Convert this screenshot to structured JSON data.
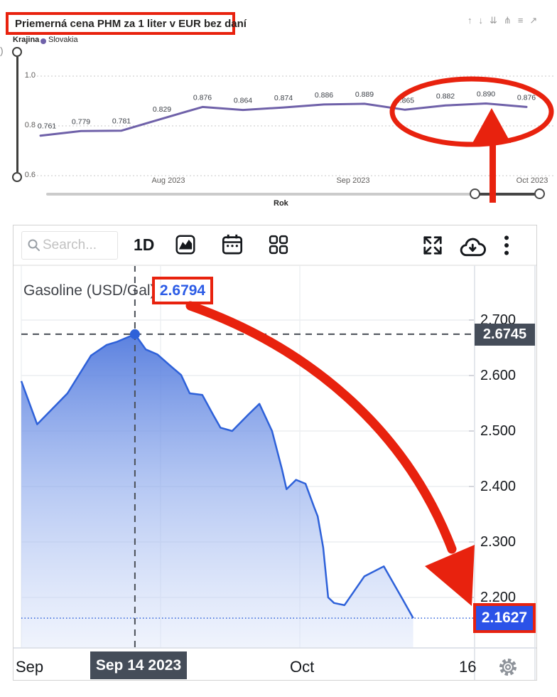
{
  "top_chart": {
    "title": "Priemerná cena PHM za 1 liter v EUR bez daní",
    "legend": {
      "field_label": "Krajina",
      "series_label": "Slovakia",
      "series_color": "#6f61a9"
    },
    "header_icons": [
      {
        "name": "drill-up-icon",
        "glyph": "↑"
      },
      {
        "name": "drill-down-icon",
        "glyph": "↓"
      },
      {
        "name": "next-level-icon",
        "glyph": "⇊"
      },
      {
        "name": "expand-hierarchy-icon",
        "glyph": "⋔"
      },
      {
        "name": "filter-icon",
        "glyph": "≡"
      },
      {
        "name": "focus-mode-icon",
        "glyph": "↗"
      }
    ],
    "x_axis_title": "Rok",
    "edge_fragment": ")"
  },
  "bottom_chart": {
    "toolbar": {
      "search_placeholder": "Search...",
      "timeframe": "1D"
    },
    "title": "Gasoline (USD/Gal)",
    "current_value": "2.6794",
    "crosshair_value": "2.6745",
    "crosshair_date": "Sep 14 2023",
    "last_value": "2.1627",
    "x_labels": [
      "Sep",
      "Oct",
      "16"
    ]
  },
  "annotations": {
    "color": "#e8220e",
    "items": [
      "red box around top chart title",
      "red ellipse around last four data points (0.865, 0.882, 0.890, 0.876)",
      "red arrow pointing up at the 0.890 point",
      "red box around current value 2.6794",
      "red curved arrow from 2.6794 down to the 2.1627 axis badge",
      "red box around last value 2.1627"
    ]
  },
  "chart_data": [
    {
      "type": "line",
      "title": "Priemerná cena PHM za 1 liter v EUR bez daní",
      "legend_field": "Krajina",
      "series": [
        {
          "name": "Slovakia",
          "color": "#6f61a9",
          "values": [
            0.761,
            0.779,
            0.781,
            0.829,
            0.876,
            0.864,
            0.874,
            0.886,
            0.889,
            0.865,
            0.882,
            0.89,
            0.876
          ]
        }
      ],
      "data_labels": true,
      "y_ticks": [
        1.0,
        0.8,
        0.6
      ],
      "ylim": [
        0.6,
        1.05
      ],
      "x_ticks": [
        "Aug 2023",
        "Sep 2023",
        "Oct 2023"
      ],
      "xlabel": "Rok",
      "grid": "dotted-horizontal",
      "legend_position": "top-left"
    },
    {
      "type": "area",
      "title": "Gasoline (USD/Gal)",
      "displayed_value": 2.6794,
      "crosshair_price": 2.6745,
      "crosshair_date": "Sep 14 2023",
      "last_price": 2.1627,
      "line_color": "#2e61d9",
      "ylim": [
        2.15,
        2.72
      ],
      "y_ticks": [
        "2.700",
        "2.600",
        "2.500",
        "2.400",
        "2.300",
        "2.200"
      ],
      "x_ticks": [
        "Sep",
        "Oct",
        "16"
      ],
      "x": [
        0.0,
        0.035,
        0.102,
        0.154,
        0.188,
        0.212,
        0.251,
        0.275,
        0.301,
        0.33,
        0.353,
        0.372,
        0.4,
        0.424,
        0.44,
        0.466,
        0.502,
        0.526,
        0.554,
        0.576,
        0.586,
        0.607,
        0.628,
        0.647,
        0.655,
        0.667,
        0.678,
        0.691,
        0.714,
        0.758,
        0.801,
        0.843,
        0.866
      ],
      "prices": [
        2.59,
        2.512,
        2.568,
        2.636,
        2.655,
        2.661,
        2.6745,
        2.647,
        2.638,
        2.617,
        2.601,
        2.568,
        2.565,
        2.529,
        2.506,
        2.5,
        2.53,
        2.549,
        2.5,
        2.431,
        2.395,
        2.412,
        2.405,
        2.363,
        2.346,
        2.29,
        2.2,
        2.19,
        2.186,
        2.238,
        2.256,
        2.196,
        2.1627
      ],
      "crosshair_x": 0.251,
      "grid": "on"
    }
  ]
}
